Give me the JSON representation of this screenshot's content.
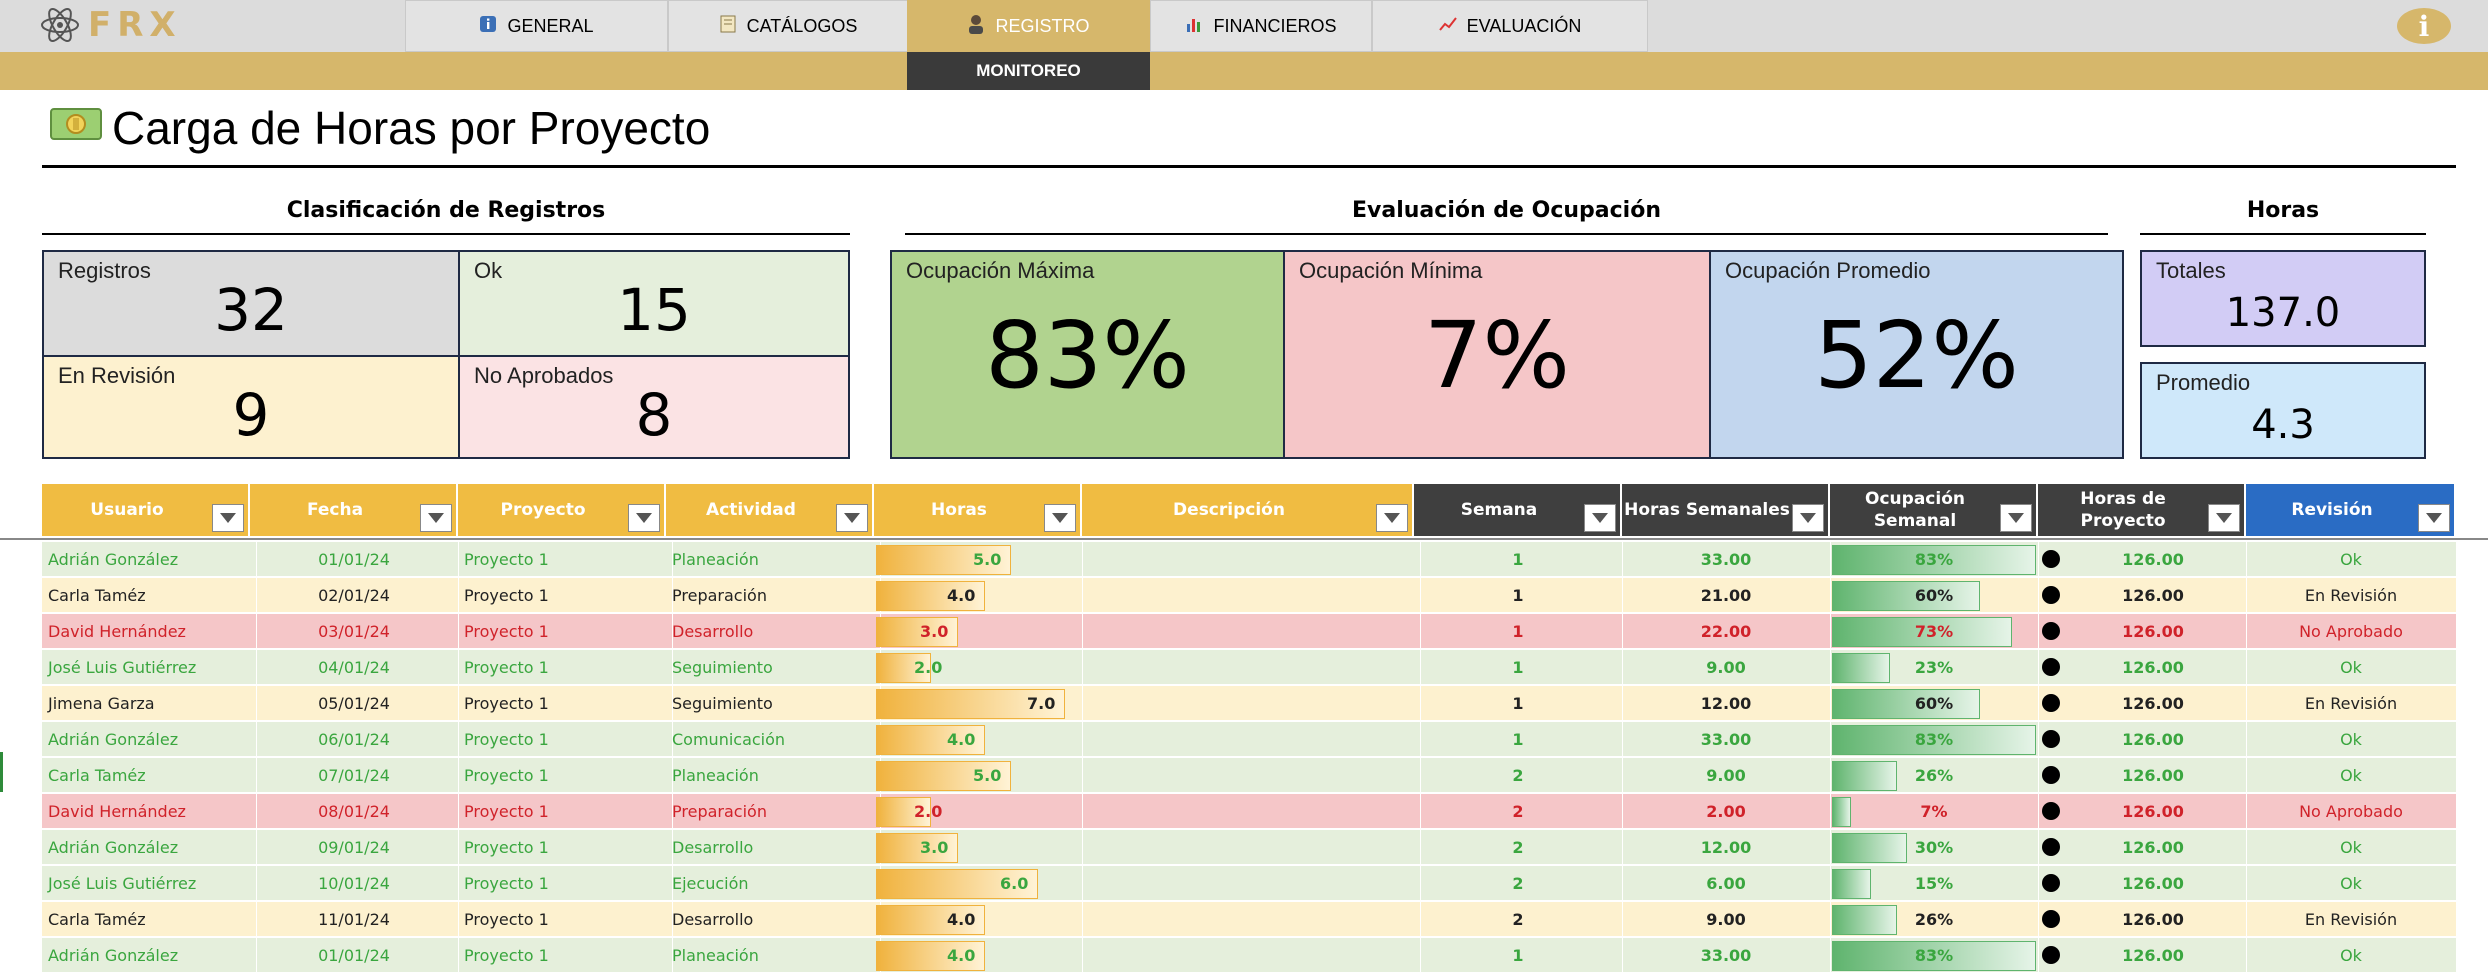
{
  "nav": {
    "logo_text": "FRX",
    "tabs": [
      {
        "label": "GENERAL",
        "icon": "info-icon"
      },
      {
        "label": "CATÁLOGOS",
        "icon": "notebook-icon"
      },
      {
        "label": "REGISTRO",
        "icon": "user-icon"
      },
      {
        "label": "FINANCIEROS",
        "icon": "bar-chart-icon"
      },
      {
        "label": "EVALUACIÓN",
        "icon": "line-chart-icon"
      }
    ],
    "active_tab": "REGISTRO",
    "subtab": "MONITOREO",
    "info_glyph": "i"
  },
  "page": {
    "title": "Carga de Horas por Proyecto",
    "title_icon": "money-icon"
  },
  "sections": {
    "clasificacion": "Clasificación de Registros",
    "evaluacion": "Evaluación de Ocupación",
    "horas": "Horas"
  },
  "kpis": {
    "registros": {
      "label": "Registros",
      "value": "32"
    },
    "ok": {
      "label": "Ok",
      "value": "15"
    },
    "revision": {
      "label": "En Revisión",
      "value": "9"
    },
    "no_aprobados": {
      "label": "No Aprobados",
      "value": "8"
    },
    "occ_max": {
      "label": "Ocupación Máxima",
      "value": "83%"
    },
    "occ_min": {
      "label": "Ocupación Mínima",
      "value": "7%"
    },
    "occ_avg": {
      "label": "Ocupación Promedio",
      "value": "52%"
    },
    "totales": {
      "label": "Totales",
      "value": "137.0"
    },
    "promedio": {
      "label": "Promedio",
      "value": "4.3"
    }
  },
  "colors": {
    "gold": "#d6b76b",
    "header_gold": "#f0bc42",
    "header_dark": "#3f3f3f",
    "header_blue": "#2a6cc4",
    "ok_bg": "#e5efdc",
    "ok_fg": "#3aa63f",
    "rev_bg": "#fdf1cf",
    "rev_fg": "#222222",
    "no_bg": "#f5c6c8",
    "no_fg": "#d0222a"
  },
  "table": {
    "columns": [
      "Usuario",
      "Fecha",
      "Proyecto",
      "Actividad",
      "Horas",
      "Descripción",
      "Semana",
      "Horas Semanales",
      "Ocupación Semanal",
      "Horas de Proyecto",
      "Revisión"
    ],
    "rows": [
      {
        "usuario": "Adrián González",
        "fecha": "01/01/24",
        "proyecto": "Proyecto 1",
        "actividad": "Planeación",
        "horas": "5.0",
        "horas_n": 5.0,
        "descripcion": "",
        "semana": "1",
        "hs": "33.00",
        "ocupacion": "83%",
        "ocupacion_n": 0.83,
        "hp": "126.00",
        "revision": "Ok",
        "status": "ok"
      },
      {
        "usuario": "Carla Taméz",
        "fecha": "02/01/24",
        "proyecto": "Proyecto 1",
        "actividad": "Preparación",
        "horas": "4.0",
        "horas_n": 4.0,
        "descripcion": "",
        "semana": "1",
        "hs": "21.00",
        "ocupacion": "60%",
        "ocupacion_n": 0.6,
        "hp": "126.00",
        "revision": "En Revisión",
        "status": "rev"
      },
      {
        "usuario": "David Hernández",
        "fecha": "03/01/24",
        "proyecto": "Proyecto 1",
        "actividad": "Desarrollo",
        "horas": "3.0",
        "horas_n": 3.0,
        "descripcion": "",
        "semana": "1",
        "hs": "22.00",
        "ocupacion": "73%",
        "ocupacion_n": 0.73,
        "hp": "126.00",
        "revision": "No Aprobado",
        "status": "no"
      },
      {
        "usuario": "José Luis Gutiérrez",
        "fecha": "04/01/24",
        "proyecto": "Proyecto 1",
        "actividad": "Seguimiento",
        "horas": "2.0",
        "horas_n": 2.0,
        "descripcion": "",
        "semana": "1",
        "hs": "9.00",
        "ocupacion": "23%",
        "ocupacion_n": 0.23,
        "hp": "126.00",
        "revision": "Ok",
        "status": "ok"
      },
      {
        "usuario": "Jimena Garza",
        "fecha": "05/01/24",
        "proyecto": "Proyecto 1",
        "actividad": "Seguimiento",
        "horas": "7.0",
        "horas_n": 7.0,
        "descripcion": "",
        "semana": "1",
        "hs": "12.00",
        "ocupacion": "60%",
        "ocupacion_n": 0.6,
        "hp": "126.00",
        "revision": "En Revisión",
        "status": "rev"
      },
      {
        "usuario": "Adrián González",
        "fecha": "06/01/24",
        "proyecto": "Proyecto 1",
        "actividad": "Comunicación",
        "horas": "4.0",
        "horas_n": 4.0,
        "descripcion": "",
        "semana": "1",
        "hs": "33.00",
        "ocupacion": "83%",
        "ocupacion_n": 0.83,
        "hp": "126.00",
        "revision": "Ok",
        "status": "ok"
      },
      {
        "usuario": "Carla Taméz",
        "fecha": "07/01/24",
        "proyecto": "Proyecto 1",
        "actividad": "Planeación",
        "horas": "5.0",
        "horas_n": 5.0,
        "descripcion": "",
        "semana": "2",
        "hs": "9.00",
        "ocupacion": "26%",
        "ocupacion_n": 0.26,
        "hp": "126.00",
        "revision": "Ok",
        "status": "ok"
      },
      {
        "usuario": "David Hernández",
        "fecha": "08/01/24",
        "proyecto": "Proyecto 1",
        "actividad": "Preparación",
        "horas": "2.0",
        "horas_n": 2.0,
        "descripcion": "",
        "semana": "2",
        "hs": "2.00",
        "ocupacion": "7%",
        "ocupacion_n": 0.07,
        "hp": "126.00",
        "revision": "No Aprobado",
        "status": "no"
      },
      {
        "usuario": "Adrián González",
        "fecha": "09/01/24",
        "proyecto": "Proyecto 1",
        "actividad": "Desarrollo",
        "horas": "3.0",
        "horas_n": 3.0,
        "descripcion": "",
        "semana": "2",
        "hs": "12.00",
        "ocupacion": "30%",
        "ocupacion_n": 0.3,
        "hp": "126.00",
        "revision": "Ok",
        "status": "ok"
      },
      {
        "usuario": "José Luis Gutiérrez",
        "fecha": "10/01/24",
        "proyecto": "Proyecto 1",
        "actividad": "Ejecución",
        "horas": "6.0",
        "horas_n": 6.0,
        "descripcion": "",
        "semana": "2",
        "hs": "6.00",
        "ocupacion": "15%",
        "ocupacion_n": 0.15,
        "hp": "126.00",
        "revision": "Ok",
        "status": "ok"
      },
      {
        "usuario": "Carla Taméz",
        "fecha": "11/01/24",
        "proyecto": "Proyecto 1",
        "actividad": "Desarrollo",
        "horas": "4.0",
        "horas_n": 4.0,
        "descripcion": "",
        "semana": "2",
        "hs": "9.00",
        "ocupacion": "26%",
        "ocupacion_n": 0.26,
        "hp": "126.00",
        "revision": "En Revisión",
        "status": "rev"
      },
      {
        "usuario": "Adrián González",
        "fecha": "01/01/24",
        "proyecto": "Proyecto 1",
        "actividad": "Planeación",
        "horas": "4.0",
        "horas_n": 4.0,
        "descripcion": "",
        "semana": "1",
        "hs": "33.00",
        "ocupacion": "83%",
        "ocupacion_n": 0.83,
        "hp": "126.00",
        "revision": "Ok",
        "status": "ok"
      }
    ]
  }
}
